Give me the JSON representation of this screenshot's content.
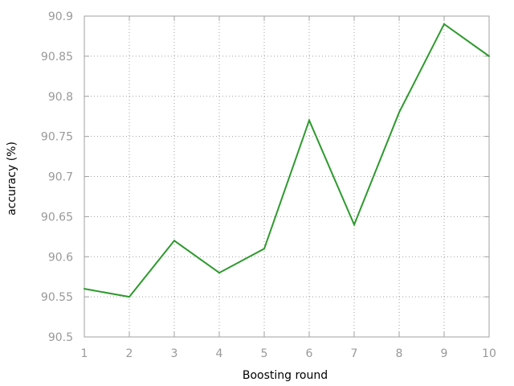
{
  "chart_data": {
    "type": "line",
    "title": "",
    "xlabel": "Boosting round",
    "ylabel": "accuracy (%)",
    "x": [
      1,
      2,
      3,
      4,
      5,
      6,
      7,
      8,
      9,
      10
    ],
    "xlim": [
      1,
      10
    ],
    "ylim": [
      90.5,
      90.9
    ],
    "xticks": [
      "1",
      "2",
      "3",
      "4",
      "5",
      "6",
      "7",
      "8",
      "9",
      "10"
    ],
    "yticks": [
      "90.5",
      "90.55",
      "90.6",
      "90.65",
      "90.7",
      "90.75",
      "90.8",
      "90.85",
      "90.9"
    ],
    "grid": true,
    "series": [
      {
        "color": "#2e9a2e",
        "values": [
          90.56,
          90.55,
          90.62,
          90.58,
          90.61,
          90.77,
          90.64,
          90.78,
          90.89,
          90.85
        ]
      }
    ]
  }
}
